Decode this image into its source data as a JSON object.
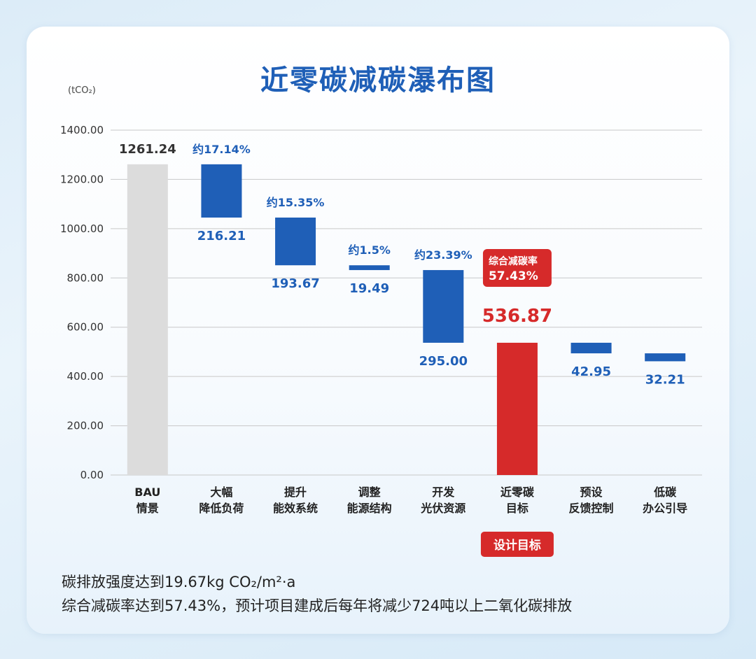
{
  "colors": {
    "bau": "#dcdcdc",
    "reduction": "#1f5fb7",
    "target": "#d62a2a",
    "grid": "#c8c8c8"
  },
  "chart_data": {
    "type": "bar",
    "title": "近零碳减碳瀑布图",
    "unit_label": "(tCO₂)",
    "ylim": [
      0,
      1400
    ],
    "yticks": [
      "0.00",
      "200.00",
      "400.00",
      "600.00",
      "800.00",
      "1000.00",
      "1200.00",
      "1400.00"
    ],
    "grid": true,
    "bars": [
      {
        "name": "bau",
        "label": [
          "BAU",
          "情景"
        ],
        "kind": "bau",
        "bottom": 0,
        "top": 1261.24,
        "value_label": "1261.24",
        "pct_label": ""
      },
      {
        "name": "reduce-load",
        "label": [
          "大幅",
          "降低负荷"
        ],
        "kind": "reduction",
        "bottom": 1045.03,
        "top": 1261.24,
        "value_label": "216.21",
        "pct_label": "约17.14%"
      },
      {
        "name": "efficiency",
        "label": [
          "提升",
          "能效系统"
        ],
        "kind": "reduction",
        "bottom": 851.36,
        "top": 1045.03,
        "value_label": "193.67",
        "pct_label": "约15.35%"
      },
      {
        "name": "energy-structure",
        "label": [
          "调整",
          "能源结构"
        ],
        "kind": "reduction",
        "bottom": 831.87,
        "top": 851.36,
        "value_label": "19.49",
        "pct_label": "约1.5%"
      },
      {
        "name": "solar",
        "label": [
          "开发",
          "光伏资源"
        ],
        "kind": "reduction",
        "bottom": 536.87,
        "top": 831.87,
        "value_label": "295.00",
        "pct_label": "约23.39%"
      },
      {
        "name": "near-zero-target",
        "label": [
          "近零碳",
          "目标"
        ],
        "kind": "target",
        "bottom": 0,
        "top": 536.87,
        "value_label": "536.87",
        "pct_label": ""
      },
      {
        "name": "feedback-control",
        "label": [
          "预设",
          "反馈控制"
        ],
        "kind": "reduction",
        "bottom": 493.92,
        "top": 536.87,
        "value_label": "42.95",
        "pct_label": ""
      },
      {
        "name": "low-carbon-office",
        "label": [
          "低碳",
          "办公引导"
        ],
        "kind": "reduction",
        "bottom": 461.71,
        "top": 493.92,
        "value_label": "32.21",
        "pct_label": ""
      }
    ],
    "badge": {
      "line1": "综合减碳率",
      "line2": "57.43%"
    },
    "target_tag": "设计目标"
  },
  "notes": {
    "line1": "碳排放强度达到19.67kg CO₂/m²·a",
    "line2": "综合减碳率达到57.43%，预计项目建成后每年将减少724吨以上二氧化碳排放"
  }
}
